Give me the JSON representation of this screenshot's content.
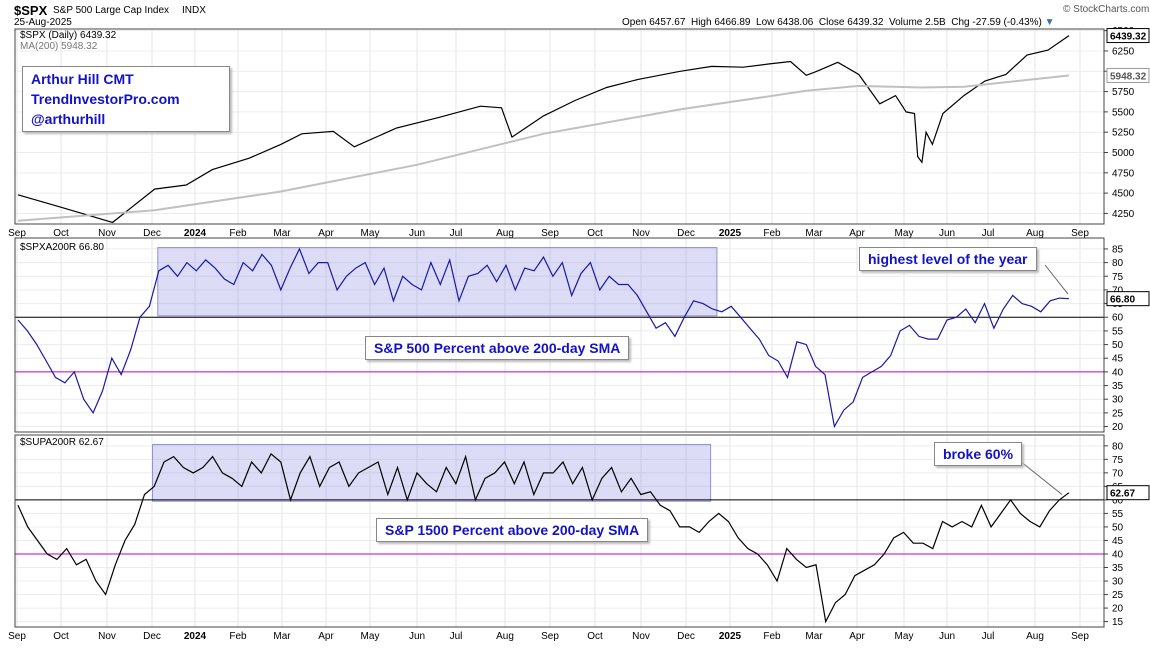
{
  "header": {
    "symbol": "$SPX",
    "name": "S&P 500 Large Cap Index",
    "exchange": "INDX",
    "date": "25-Aug-2025",
    "watermark": "© StockCharts.com",
    "open_label": "Open",
    "open": "6457.67",
    "high_label": "High",
    "high": "6466.89",
    "low_label": "Low",
    "low": "6438.06",
    "close_label": "Close",
    "close": "6439.32",
    "volume_label": "Volume",
    "volume": "2.5B",
    "chg_label": "Chg",
    "chg": "-27.59 (-0.43%)"
  },
  "panels": {
    "price_legend": "$SPX (Daily) 6439.32",
    "ma_legend": "MA(200) 5948.32",
    "spxa_legend": "$SPXA200R 66.80",
    "supa_legend": "$SUPA200R 62.67"
  },
  "annotations": {
    "author_name": "Arthur Hill CMT",
    "author_site": "TrendInvestorPro.com",
    "author_handle": "@arthurhill",
    "spxa_label": "S&P 500 Percent above 200-day SMA",
    "supa_label": "S&P 1500 Percent above 200-day SMA",
    "callout_1": "highest level of the year",
    "callout_2": "broke 60%"
  },
  "colors": {
    "price": "#000000",
    "ma": "#c0c0c0",
    "spxa": "#1a1aa6",
    "supa": "#000000",
    "line_60": "#000000",
    "line_40": "#c000c0",
    "highlight": "#8080e0"
  },
  "chart_data": [
    {
      "type": "line",
      "x_ticks": [
        "Sep",
        "Oct",
        "Nov",
        "Dec",
        "2024",
        "Feb",
        "Mar",
        "Apr",
        "May",
        "Jun",
        "Jul",
        "Aug",
        "Sep",
        "Oct",
        "Nov",
        "Dec",
        "2025",
        "Feb",
        "Mar",
        "Apr",
        "May",
        "Jun",
        "Jul",
        "Aug",
        "Sep"
      ],
      "y_ticks": [
        4250,
        4500,
        4750,
        5000,
        5250,
        5500,
        5750,
        6000,
        6250,
        6500
      ],
      "ylim": [
        4120,
        6520
      ],
      "last_value": "6439.32",
      "ma_last_value": "5948.32",
      "series": [
        {
          "name": "$SPX (Daily)",
          "role": "price",
          "points": [
            [
              0,
              4480
            ],
            [
              0.04,
              4330
            ],
            [
              0.09,
              4140
            ],
            [
              0.13,
              4550
            ],
            [
              0.16,
              4600
            ],
            [
              0.185,
              4790
            ],
            [
              0.22,
              4930
            ],
            [
              0.25,
              5100
            ],
            [
              0.27,
              5230
            ],
            [
              0.3,
              5260
            ],
            [
              0.32,
              5070
            ],
            [
              0.36,
              5300
            ],
            [
              0.4,
              5430
            ],
            [
              0.44,
              5570
            ],
            [
              0.46,
              5550
            ],
            [
              0.47,
              5190
            ],
            [
              0.5,
              5450
            ],
            [
              0.53,
              5640
            ],
            [
              0.56,
              5800
            ],
            [
              0.59,
              5900
            ],
            [
              0.63,
              6000
            ],
            [
              0.66,
              6060
            ],
            [
              0.69,
              6050
            ],
            [
              0.715,
              6090
            ],
            [
              0.735,
              6120
            ],
            [
              0.75,
              5950
            ],
            [
              0.76,
              6000
            ],
            [
              0.78,
              6110
            ],
            [
              0.8,
              5960
            ],
            [
              0.82,
              5600
            ],
            [
              0.835,
              5700
            ],
            [
              0.845,
              5500
            ],
            [
              0.853,
              5480
            ],
            [
              0.856,
              4950
            ],
            [
              0.86,
              4880
            ],
            [
              0.864,
              5250
            ],
            [
              0.87,
              5100
            ],
            [
              0.88,
              5480
            ],
            [
              0.9,
              5700
            ],
            [
              0.92,
              5880
            ],
            [
              0.94,
              5960
            ],
            [
              0.96,
              6200
            ],
            [
              0.98,
              6260
            ],
            [
              1.0,
              6439
            ]
          ]
        },
        {
          "name": "MA(200)",
          "role": "ma",
          "points": [
            [
              0,
              4160
            ],
            [
              0.13,
              4290
            ],
            [
              0.25,
              4520
            ],
            [
              0.38,
              4850
            ],
            [
              0.5,
              5230
            ],
            [
              0.63,
              5530
            ],
            [
              0.75,
              5760
            ],
            [
              0.8,
              5820
            ],
            [
              0.86,
              5800
            ],
            [
              0.9,
              5810
            ],
            [
              1.0,
              5948
            ]
          ]
        }
      ]
    },
    {
      "type": "line",
      "x_ticks": [
        "Sep",
        "Oct",
        "Nov",
        "Dec",
        "2024",
        "Feb",
        "Mar",
        "Apr",
        "May",
        "Jun",
        "Jul",
        "Aug",
        "Sep",
        "Oct",
        "Nov",
        "Dec",
        "2025",
        "Feb",
        "Mar",
        "Apr",
        "May",
        "Jun",
        "Jul",
        "Aug",
        "Sep"
      ],
      "y_ticks": [
        20,
        25,
        30,
        35,
        40,
        45,
        50,
        55,
        60,
        65,
        70,
        75,
        80,
        85
      ],
      "ylim": [
        18,
        89
      ],
      "reference_lines": [
        60,
        40
      ],
      "last_value": "66.80",
      "series": [
        {
          "name": "$SPXA200R",
          "values": [
            59,
            55,
            50,
            44,
            38,
            36,
            40,
            30,
            25,
            33,
            45,
            39,
            48,
            60,
            64,
            77,
            79,
            75,
            80,
            77,
            81,
            78,
            74,
            72,
            80,
            77,
            83,
            79,
            70,
            78,
            85,
            76,
            80,
            80,
            70,
            75,
            78,
            80,
            72,
            78,
            66,
            75,
            72,
            70,
            80,
            72,
            81,
            66,
            75,
            76,
            79,
            73,
            79,
            70,
            78,
            77,
            82,
            75,
            80,
            68,
            76,
            80,
            70,
            75,
            72,
            72,
            68,
            62,
            56,
            58,
            53,
            60,
            66,
            65,
            63,
            62,
            64,
            60,
            56,
            52,
            46,
            44,
            38,
            51,
            50,
            42,
            39,
            20,
            26,
            29,
            38,
            40,
            42,
            46,
            55,
            57,
            53,
            52,
            52,
            59,
            60,
            63,
            58,
            65,
            56,
            63,
            68,
            65,
            64,
            62,
            66,
            67,
            66.8
          ]
        }
      ]
    },
    {
      "type": "line",
      "x_ticks": [
        "Sep",
        "Oct",
        "Nov",
        "Dec",
        "2024",
        "Feb",
        "Mar",
        "Apr",
        "May",
        "Jun",
        "Jul",
        "Aug",
        "Sep",
        "Oct",
        "Nov",
        "Dec",
        "2025",
        "Feb",
        "Mar",
        "Apr",
        "May",
        "Jun",
        "Jul",
        "Aug",
        "Sep"
      ],
      "y_ticks": [
        15,
        20,
        25,
        30,
        35,
        40,
        45,
        50,
        55,
        60,
        65,
        70,
        75,
        80
      ],
      "ylim": [
        13,
        84
      ],
      "reference_lines": [
        60,
        40
      ],
      "last_value": "62.67",
      "series": [
        {
          "name": "$SUPA200R",
          "values": [
            58,
            50,
            45,
            40,
            38,
            42,
            36,
            38,
            30,
            25,
            36,
            45,
            51,
            62,
            65,
            74,
            76,
            72,
            70,
            72,
            76,
            70,
            68,
            65,
            74,
            70,
            77,
            74,
            60,
            70,
            76,
            65,
            72,
            74,
            65,
            70,
            72,
            74,
            62,
            72,
            60,
            70,
            66,
            63,
            72,
            66,
            76,
            60,
            68,
            70,
            74,
            66,
            74,
            62,
            70,
            70,
            74,
            66,
            72,
            60,
            68,
            72,
            63,
            68,
            62,
            63,
            58,
            56,
            50,
            50,
            48,
            52,
            55,
            52,
            46,
            42,
            40,
            36,
            30,
            42,
            38,
            35,
            36,
            15,
            22,
            25,
            32,
            34,
            36,
            40,
            46,
            48,
            44,
            44,
            42,
            52,
            50,
            52,
            50,
            58,
            50,
            55,
            60,
            55,
            52,
            50,
            56,
            60,
            62.67
          ]
        }
      ]
    }
  ]
}
